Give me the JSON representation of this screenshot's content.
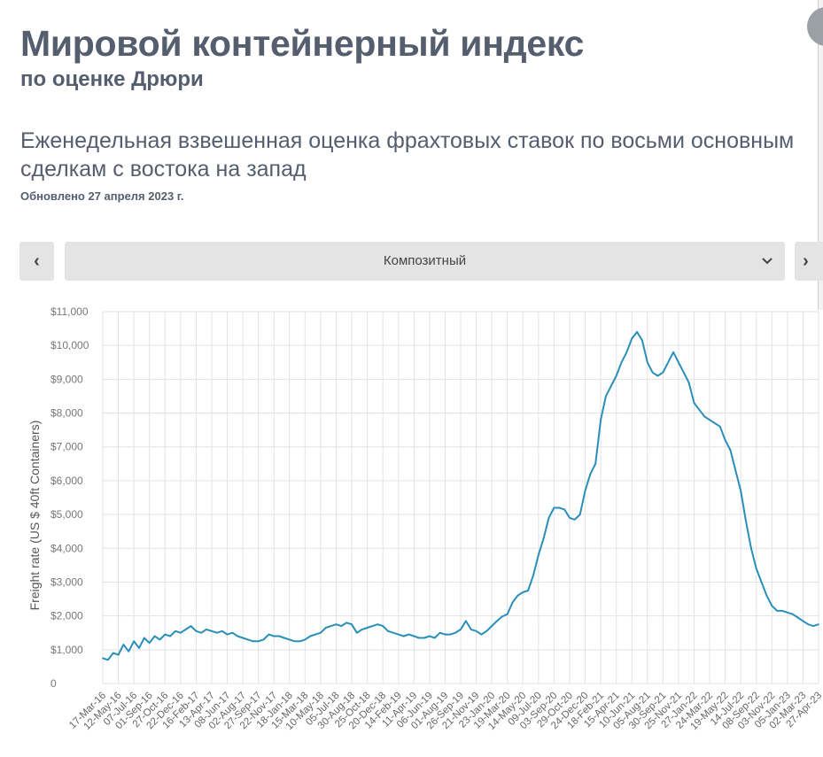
{
  "header": {
    "title": "Мировой контейнерный индекс",
    "subtitle": "по оценке Дрюри",
    "description": "Еженедельная взвешенная оценка фрахтовых ставок по восьми основным сделкам с востока на запад",
    "updated": "Обновлено 27 апреля 2023 г."
  },
  "controls": {
    "prev_label": "‹",
    "next_label": "›",
    "selector_value": "Композитный"
  },
  "colors": {
    "line": "#2a8fb8",
    "grid": "#e3e3e3",
    "button_bg": "#e4e4e4",
    "text": "#545e6e"
  },
  "chart_data": {
    "type": "line",
    "title": "",
    "xlabel": "",
    "ylabel": "Freight rate (US $ 40ft Containers)",
    "ylim": [
      0,
      11000
    ],
    "y_ticks": [
      "0",
      "$1,000",
      "$2,000",
      "$3,000",
      "$4,000",
      "$5,000",
      "$6,000",
      "$7,000",
      "$8,000",
      "$9,000",
      "$10,000",
      "$11,000"
    ],
    "grid": true,
    "x_ticks": [
      "17-Mar-16",
      "12-May-16",
      "07-Jul-16",
      "01-Sep-16",
      "27-Oct-16",
      "22-Dec-16",
      "16-Feb-17",
      "13-Apr-17",
      "08-Jun-17",
      "02-Aug-17",
      "27-Sep-17",
      "22-Nov-17",
      "18-Jan-18",
      "15-Mar-18",
      "10-May-18",
      "05-Jul-18",
      "30-Aug-18",
      "25-Oct-18",
      "20-Dec-18",
      "14-Feb-19",
      "11-Apr-19",
      "06-Jun-19",
      "01-Aug-19",
      "26-Sep-19",
      "21-Nov-19",
      "23-Jan-20",
      "19-Mar-20",
      "14-May-20",
      "09-Jul-20",
      "03-Sep-20",
      "29-Oct-20",
      "24-Dec-20",
      "18-Feb-21",
      "15-Apr-21",
      "10-Jun-21",
      "05-Aug-21",
      "30-Sep-21",
      "25-Nov-21",
      "27-Jan-22",
      "24-Mar-22",
      "19-May-22",
      "14-Jul-22",
      "08-Sep-22",
      "03-Nov-22",
      "05-Jan-23",
      "02-Mar-23",
      "27-Apr-23"
    ],
    "series": [
      {
        "values": [
          750,
          700,
          900,
          850,
          1150,
          950,
          1250,
          1050,
          1350,
          1200,
          1400,
          1300,
          1450,
          1400,
          1550,
          1500,
          1600,
          1700,
          1550,
          1500,
          1600,
          1550,
          1500,
          1550,
          1450,
          1500,
          1400,
          1350,
          1300,
          1250,
          1250,
          1300,
          1450,
          1400,
          1400,
          1350,
          1300,
          1250,
          1250,
          1300,
          1400,
          1450,
          1500,
          1650,
          1700,
          1750,
          1700,
          1800,
          1750,
          1500,
          1600,
          1650,
          1700,
          1750,
          1700,
          1550,
          1500,
          1450,
          1400,
          1450,
          1400,
          1350,
          1350,
          1400,
          1350,
          1500,
          1450,
          1450,
          1500,
          1600,
          1850,
          1600,
          1550,
          1450,
          1550,
          1700,
          1850,
          1980,
          2050,
          2400,
          2600,
          2700,
          2750,
          3200,
          3800,
          4300,
          4900,
          5200,
          5200,
          5150,
          4900,
          4850,
          5000,
          5700,
          6200,
          6500,
          7800,
          8500,
          8800,
          9100,
          9500,
          9800,
          10200,
          10400,
          10150,
          9500,
          9200,
          9100,
          9200,
          9500,
          9800,
          9500,
          9200,
          8900,
          8300,
          8100,
          7900,
          7800,
          7700,
          7600,
          7200,
          6900,
          6300,
          5700,
          4800,
          4000,
          3400,
          3000,
          2600,
          2300,
          2150,
          2150,
          2100,
          2050,
          1950,
          1850,
          1750,
          1700,
          1750
        ]
      }
    ]
  }
}
